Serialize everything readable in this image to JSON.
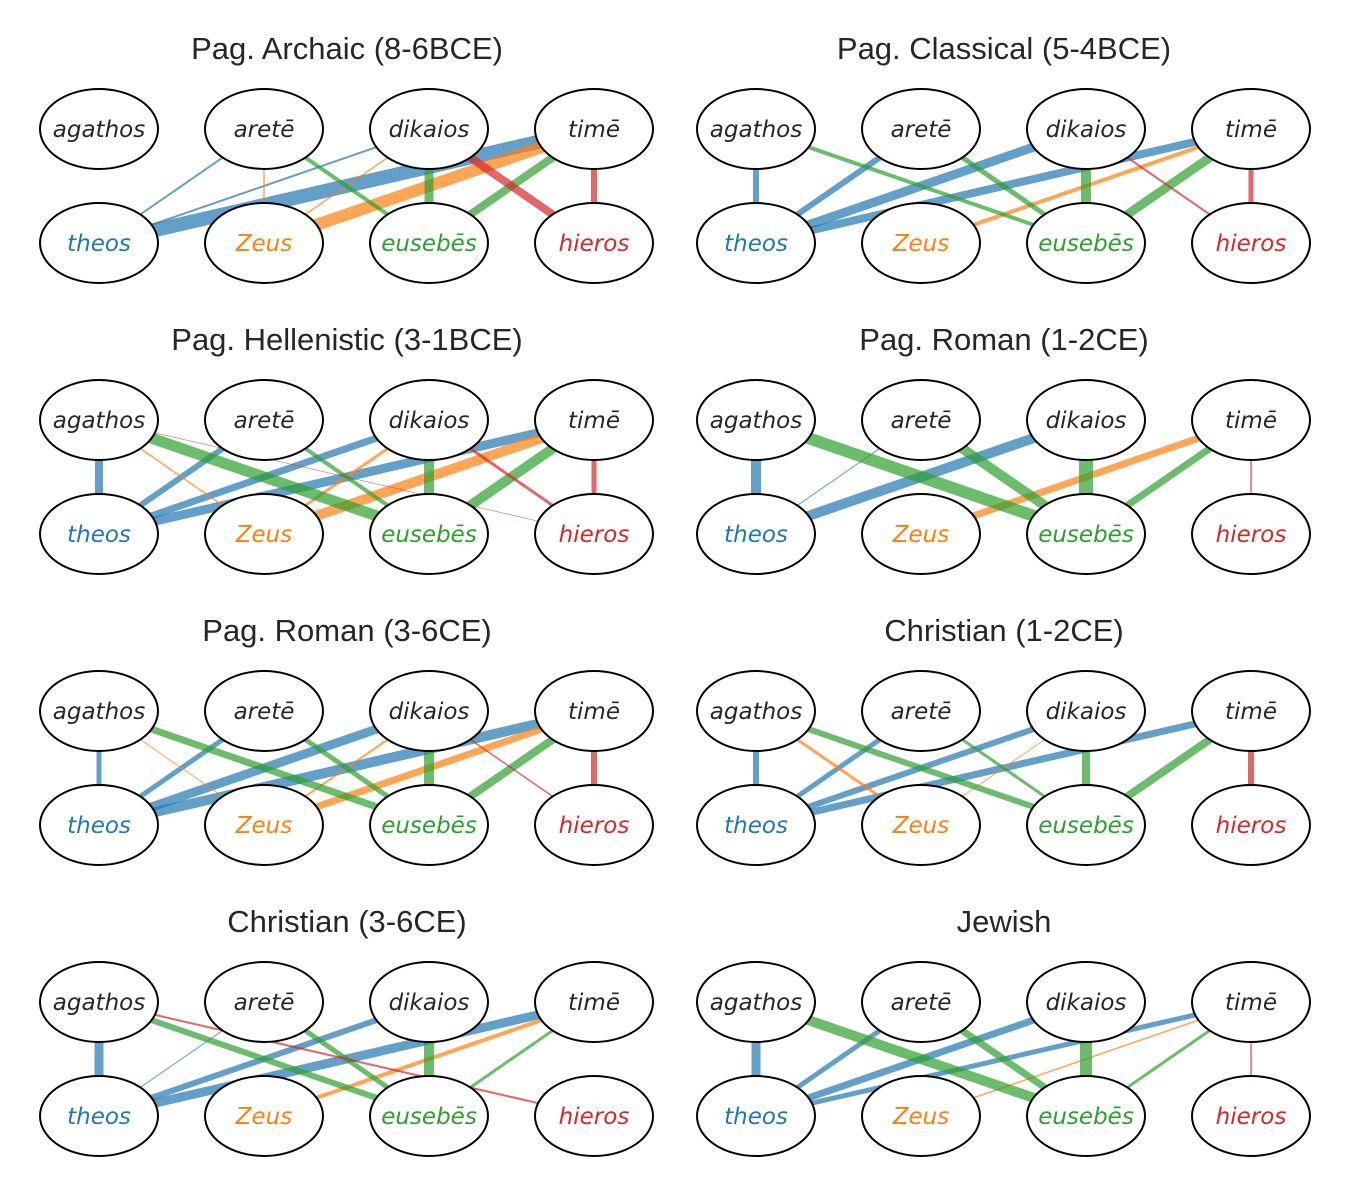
{
  "colors": {
    "theos": "#1f77b4",
    "Zeus": "#ff7f0e",
    "eusebes": "#2ca02c",
    "hieros": "#d62728",
    "concept_text": "#262626"
  },
  "nodes": {
    "top": [
      "agathos",
      "aretē",
      "dikaios",
      "timē"
    ],
    "bottom": [
      "theos",
      "Zeus",
      "eusebēs",
      "hieros"
    ]
  },
  "panels": [
    {
      "title": "Pag. Archaic (8-6BCE)",
      "edges": [
        [
          "theos",
          "aretē",
          2
        ],
        [
          "theos",
          "dikaios",
          2
        ],
        [
          "theos",
          "timē",
          14
        ],
        [
          "Zeus",
          "aretē",
          1.5
        ],
        [
          "Zeus",
          "dikaios",
          1.5
        ],
        [
          "Zeus",
          "timē",
          12
        ],
        [
          "eusebēs",
          "aretē",
          4
        ],
        [
          "eusebēs",
          "dikaios",
          9
        ],
        [
          "eusebēs",
          "timē",
          8
        ],
        [
          "hieros",
          "dikaios",
          8
        ],
        [
          "hieros",
          "timē",
          6
        ]
      ]
    },
    {
      "title": "Pag. Classical (5-4BCE)",
      "edges": [
        [
          "theos",
          "agathos",
          6
        ],
        [
          "theos",
          "aretē",
          6
        ],
        [
          "theos",
          "dikaios",
          9
        ],
        [
          "theos",
          "timē",
          8
        ],
        [
          "Zeus",
          "timē",
          4
        ],
        [
          "eusebēs",
          "agathos",
          4
        ],
        [
          "eusebēs",
          "aretē",
          5
        ],
        [
          "eusebēs",
          "dikaios",
          10
        ],
        [
          "eusebēs",
          "timē",
          9
        ],
        [
          "hieros",
          "dikaios",
          2
        ],
        [
          "hieros",
          "timē",
          5
        ]
      ]
    },
    {
      "title": "Pag. Hellenistic (3-1BCE)",
      "edges": [
        [
          "theos",
          "agathos",
          8
        ],
        [
          "theos",
          "aretē",
          6
        ],
        [
          "theos",
          "dikaios",
          7
        ],
        [
          "theos",
          "timē",
          9
        ],
        [
          "Zeus",
          "agathos",
          1.5
        ],
        [
          "Zeus",
          "dikaios",
          3
        ],
        [
          "Zeus",
          "timē",
          10
        ],
        [
          "eusebēs",
          "agathos",
          11
        ],
        [
          "eusebēs",
          "aretē",
          4
        ],
        [
          "eusebēs",
          "dikaios",
          10
        ],
        [
          "eusebēs",
          "timē",
          10
        ],
        [
          "hieros",
          "agathos",
          0.6
        ],
        [
          "hieros",
          "dikaios",
          3
        ],
        [
          "hieros",
          "timē",
          5
        ]
      ]
    },
    {
      "title": "Pag. Roman (1-2CE)",
      "edges": [
        [
          "theos",
          "agathos",
          10
        ],
        [
          "theos",
          "aretē",
          1
        ],
        [
          "theos",
          "dikaios",
          10
        ],
        [
          "Zeus",
          "timē",
          7
        ],
        [
          "eusebēs",
          "agathos",
          12
        ],
        [
          "eusebēs",
          "aretē",
          10
        ],
        [
          "eusebēs",
          "dikaios",
          14
        ],
        [
          "eusebēs",
          "timē",
          7
        ],
        [
          "hieros",
          "timē",
          1.5
        ]
      ]
    },
    {
      "title": "Pag. Roman (3-6CE)",
      "edges": [
        [
          "theos",
          "agathos",
          5
        ],
        [
          "theos",
          "aretē",
          5
        ],
        [
          "theos",
          "dikaios",
          9
        ],
        [
          "theos",
          "timē",
          10
        ],
        [
          "Zeus",
          "agathos",
          1
        ],
        [
          "Zeus",
          "dikaios",
          2
        ],
        [
          "Zeus",
          "timē",
          7
        ],
        [
          "eusebēs",
          "agathos",
          7
        ],
        [
          "eusebēs",
          "aretē",
          5
        ],
        [
          "eusebēs",
          "dikaios",
          10
        ],
        [
          "eusebēs",
          "timē",
          8
        ],
        [
          "hieros",
          "dikaios",
          1.5
        ],
        [
          "hieros",
          "timē",
          6
        ]
      ]
    },
    {
      "title": "Christian (1-2CE)",
      "edges": [
        [
          "theos",
          "agathos",
          6
        ],
        [
          "theos",
          "aretē",
          5
        ],
        [
          "theos",
          "dikaios",
          6
        ],
        [
          "theos",
          "timē",
          7
        ],
        [
          "Zeus",
          "agathos",
          3
        ],
        [
          "Zeus",
          "dikaios",
          1
        ],
        [
          "eusebēs",
          "agathos",
          6
        ],
        [
          "eusebēs",
          "aretē",
          3
        ],
        [
          "eusebēs",
          "dikaios",
          8
        ],
        [
          "eusebēs",
          "timē",
          8
        ],
        [
          "hieros",
          "timē",
          6
        ]
      ]
    },
    {
      "title": "Christian (3-6CE)",
      "edges": [
        [
          "theos",
          "agathos",
          9
        ],
        [
          "theos",
          "aretē",
          1
        ],
        [
          "theos",
          "dikaios",
          6
        ],
        [
          "theos",
          "timē",
          9
        ],
        [
          "Zeus",
          "timē",
          4
        ],
        [
          "eusebēs",
          "agathos",
          6
        ],
        [
          "eusebēs",
          "aretē",
          5
        ],
        [
          "eusebēs",
          "dikaios",
          10
        ],
        [
          "eusebēs",
          "timē",
          3
        ],
        [
          "hieros",
          "agathos",
          2
        ]
      ]
    },
    {
      "title": "Jewish",
      "edges": [
        [
          "theos",
          "agathos",
          9
        ],
        [
          "theos",
          "aretē",
          5
        ],
        [
          "theos",
          "dikaios",
          7
        ],
        [
          "theos",
          "timē",
          5
        ],
        [
          "Zeus",
          "timē",
          1.5
        ],
        [
          "eusebēs",
          "agathos",
          10
        ],
        [
          "eusebēs",
          "aretē",
          7
        ],
        [
          "eusebēs",
          "dikaios",
          12
        ],
        [
          "eusebēs",
          "timē",
          3
        ],
        [
          "hieros",
          "timē",
          1.5
        ]
      ]
    }
  ]
}
